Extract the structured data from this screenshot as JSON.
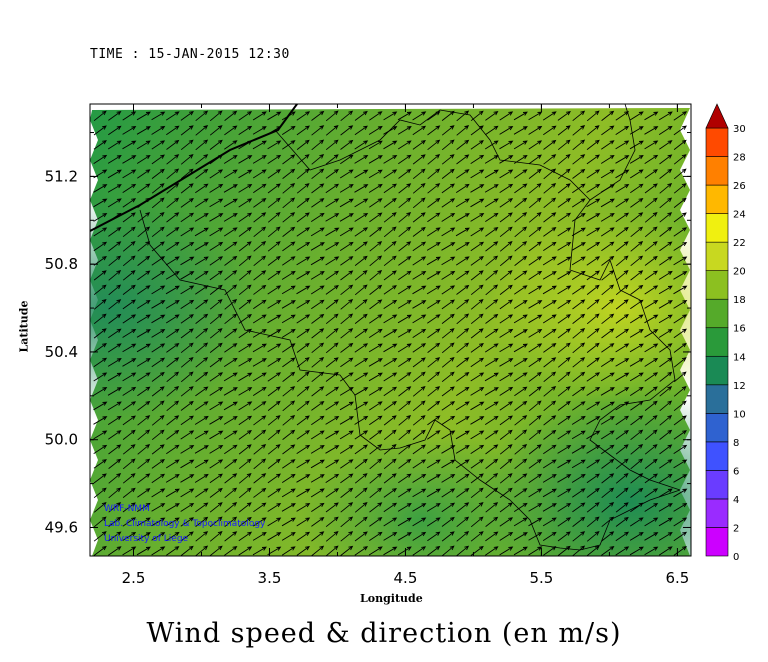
{
  "time_label": "TIME : 15-JAN-2015 12:30",
  "title": "Wind speed & direction (en m/s)",
  "x_axis": {
    "label": "Longitude",
    "ticks": [
      "2.5",
      "3.5",
      "4.5",
      "5.5",
      "6.5"
    ],
    "values": [
      2.5,
      3.5,
      4.5,
      5.5,
      6.5
    ],
    "range": [
      2.18,
      6.6
    ]
  },
  "y_axis": {
    "label": "Latitude",
    "ticks": [
      "49.6",
      "50.0",
      "50.4",
      "50.8",
      "51.2"
    ],
    "values": [
      49.6,
      50.0,
      50.4,
      50.8,
      51.2
    ],
    "range": [
      49.47,
      51.53
    ]
  },
  "colorbar": {
    "ticks": [
      "0",
      "2",
      "4",
      "6",
      "8",
      "10",
      "12",
      "14",
      "16",
      "18",
      "20",
      "22",
      "24",
      "26",
      "28",
      "30"
    ],
    "colors": [
      "#cc00ff",
      "#9a2bff",
      "#6a3cff",
      "#3f52ff",
      "#2f62d0",
      "#2a6f9a",
      "#1a8a55",
      "#2a9a3a",
      "#55aa2a",
      "#8cc020",
      "#c8d820",
      "#f0f010",
      "#ffb800",
      "#ff8000",
      "#ff4a00",
      "#e01010",
      "#b00000"
    ]
  },
  "credits": [
    "WRF-NMM",
    "Lab. Climatology & Topoclimatology",
    "University of Liege"
  ],
  "field": {
    "direction_deg_from_east": 35,
    "speed_range_ms": [
      11,
      18
    ]
  }
}
